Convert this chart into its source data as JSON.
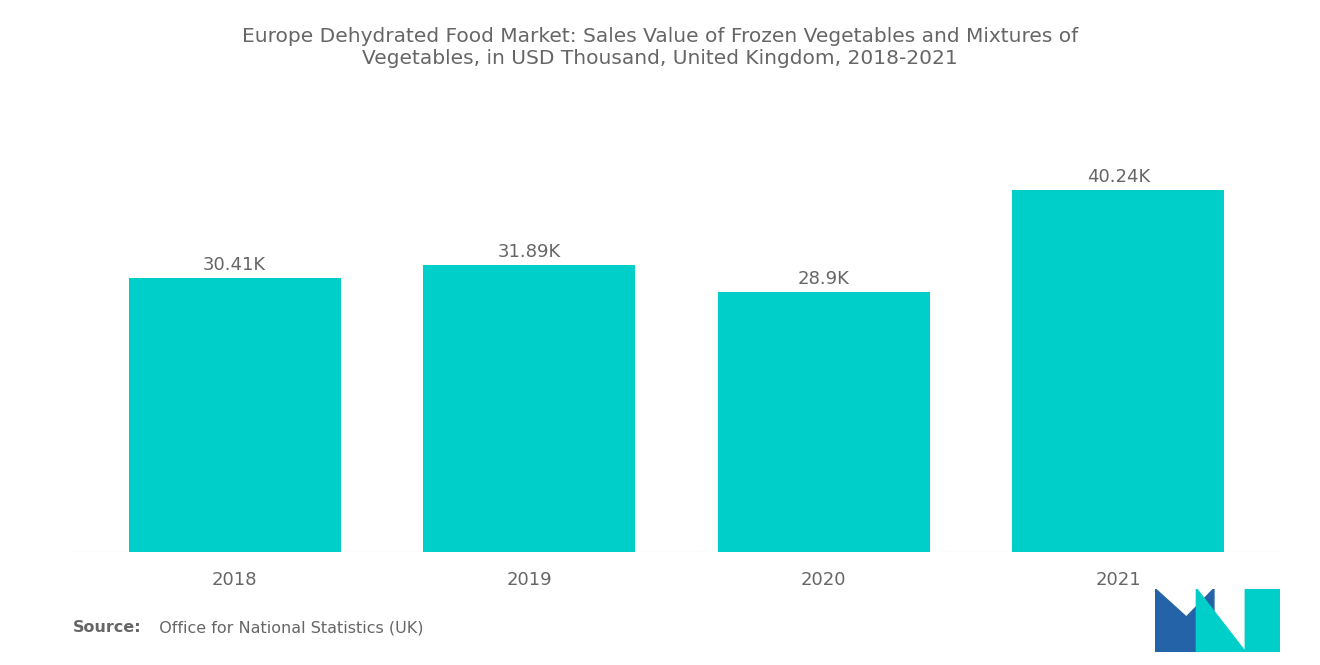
{
  "title": "Europe Dehydrated Food Market: Sales Value of Frozen Vegetables and Mixtures of\nVegetables, in USD Thousand, United Kingdom, 2018-2021",
  "categories": [
    "2018",
    "2019",
    "2020",
    "2021"
  ],
  "values": [
    30.41,
    31.89,
    28.9,
    40.24
  ],
  "labels": [
    "30.41K",
    "31.89K",
    "28.9K",
    "40.24K"
  ],
  "bar_color": "#00CEC9",
  "background_color": "#ffffff",
  "source_bold": "Source:",
  "source_normal": "  Office for National Statistics (UK)",
  "title_fontsize": 14.5,
  "label_fontsize": 13,
  "tick_fontsize": 13,
  "source_fontsize": 11.5,
  "bar_width": 0.72,
  "ylim": [
    0,
    48
  ],
  "text_color": "#666666",
  "logo_blue": "#2563A8",
  "logo_teal": "#00CEC9"
}
